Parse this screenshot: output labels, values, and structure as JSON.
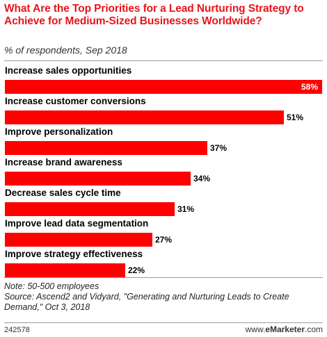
{
  "title": "What Are the Top Priorities for a Lead Nurturing Strategy to Achieve for Medium-Sized Businesses Worldwide?",
  "subtitle": "% of respondents, Sep 2018",
  "note_lines": [
    "Note: 50-500 employees",
    "Source: Ascend2 and Vidyard, \"Generating and Nurturing Leads to Create",
    "Demand,\" Oct 3, 2018"
  ],
  "footer": {
    "chart_id": "242578",
    "brand_prefix": "www.",
    "brand_name": "eMarketer",
    "brand_suffix": ".com"
  },
  "colors": {
    "title": "#e8141b",
    "bar": "#fe0000"
  },
  "chart_data": {
    "type": "bar",
    "orientation": "horizontal",
    "categories": [
      "Increase sales opportunities",
      "Increase customer conversions",
      "Improve personalization",
      "Increase brand awareness",
      "Decrease sales cycle time",
      "Improve lead data segmentation",
      "Improve strategy effectiveness"
    ],
    "values": [
      58,
      51,
      37,
      34,
      31,
      27,
      22
    ],
    "value_labels": [
      "58%",
      "51%",
      "37%",
      "34%",
      "31%",
      "27%",
      "22%"
    ],
    "xlim": [
      0,
      58
    ],
    "grid": false
  }
}
